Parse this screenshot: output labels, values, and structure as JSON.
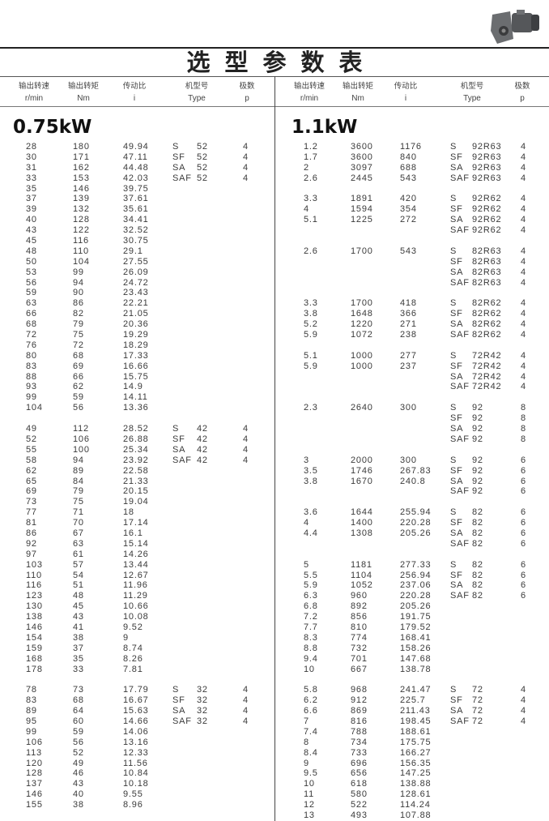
{
  "title": "选型参数表",
  "colors": {
    "text": "#3a3a3a",
    "rule": "#222222"
  },
  "headers": [
    {
      "cn": "输出转速",
      "en": "r/min"
    },
    {
      "cn": "输出转矩",
      "en": "Nm"
    },
    {
      "cn": "传动比",
      "en": "i"
    },
    {
      "cn": "机型号",
      "en": "Type"
    },
    {
      "cn": "极数",
      "en": "p"
    }
  ],
  "sections": [
    {
      "power": "0.75kW",
      "blocks": [
        {
          "rows": [
            [
              "28",
              "180",
              "49.94"
            ],
            [
              "30",
              "171",
              "47.11"
            ],
            [
              "31",
              "162",
              "44.48"
            ],
            [
              "33",
              "153",
              "42.03"
            ],
            [
              "35",
              "146",
              "39.75"
            ],
            [
              "37",
              "139",
              "37.61"
            ],
            [
              "39",
              "132",
              "35.61"
            ],
            [
              "40",
              "128",
              "34.41"
            ],
            [
              "43",
              "122",
              "32.52"
            ],
            [
              "45",
              "116",
              "30.75"
            ],
            [
              "48",
              "110",
              "29.1"
            ],
            [
              "50",
              "104",
              "27.55"
            ],
            [
              "53",
              "99",
              "26.09"
            ],
            [
              "56",
              "94",
              "24.72"
            ],
            [
              "59",
              "90",
              "23.43"
            ],
            [
              "63",
              "86",
              "22.21"
            ],
            [
              "66",
              "82",
              "21.05"
            ],
            [
              "68",
              "79",
              "20.36"
            ],
            [
              "72",
              "75",
              "19.29"
            ],
            [
              "76",
              "72",
              "18.29"
            ],
            [
              "80",
              "68",
              "17.33"
            ],
            [
              "83",
              "69",
              "16.66"
            ],
            [
              "88",
              "66",
              "15.75"
            ],
            [
              "93",
              "62",
              "14.9"
            ],
            [
              "99",
              "59",
              "14.11"
            ],
            [
              "104",
              "56",
              "13.36"
            ]
          ],
          "types": [
            [
              "S",
              "52",
              "4"
            ],
            [
              "SF",
              "52",
              "4"
            ],
            [
              "SA",
              "52",
              "4"
            ],
            [
              "SAF",
              "52",
              "4"
            ]
          ]
        },
        {
          "rows": [
            [
              "49",
              "112",
              "28.52"
            ],
            [
              "52",
              "106",
              "26.88"
            ],
            [
              "55",
              "100",
              "25.34"
            ],
            [
              "58",
              "94",
              "23.92"
            ],
            [
              "62",
              "89",
              "22.58"
            ],
            [
              "65",
              "84",
              "21.33"
            ],
            [
              "69",
              "79",
              "20.15"
            ],
            [
              "73",
              "75",
              "19.04"
            ],
            [
              "77",
              "71",
              "18"
            ],
            [
              "81",
              "70",
              "17.14"
            ],
            [
              "86",
              "67",
              "16.1"
            ],
            [
              "92",
              "63",
              "15.14"
            ],
            [
              "97",
              "61",
              "14.26"
            ],
            [
              "103",
              "57",
              "13.44"
            ],
            [
              "110",
              "54",
              "12.67"
            ],
            [
              "116",
              "51",
              "11.96"
            ],
            [
              "123",
              "48",
              "11.29"
            ],
            [
              "130",
              "45",
              "10.66"
            ],
            [
              "138",
              "43",
              "10.08"
            ],
            [
              "146",
              "41",
              "9.52"
            ],
            [
              "154",
              "38",
              "9"
            ],
            [
              "159",
              "37",
              "8.74"
            ],
            [
              "168",
              "35",
              "8.26"
            ],
            [
              "178",
              "33",
              "7.81"
            ]
          ],
          "types": [
            [
              "S",
              "42",
              "4"
            ],
            [
              "SF",
              "42",
              "4"
            ],
            [
              "SA",
              "42",
              "4"
            ],
            [
              "SAF",
              "42",
              "4"
            ]
          ]
        },
        {
          "rows": [
            [
              "78",
              "73",
              "17.79"
            ],
            [
              "83",
              "68",
              "16.67"
            ],
            [
              "89",
              "64",
              "15.63"
            ],
            [
              "95",
              "60",
              "14.66"
            ],
            [
              "99",
              "59",
              "14.06"
            ],
            [
              "106",
              "56",
              "13.16"
            ],
            [
              "113",
              "52",
              "12.33"
            ],
            [
              "120",
              "49",
              "11.56"
            ],
            [
              "128",
              "46",
              "10.84"
            ],
            [
              "137",
              "43",
              "10.18"
            ],
            [
              "146",
              "40",
              "9.55"
            ],
            [
              "155",
              "38",
              "8.96"
            ]
          ],
          "types": [
            [
              "S",
              "32",
              "4"
            ],
            [
              "SF",
              "32",
              "4"
            ],
            [
              "SA",
              "32",
              "4"
            ],
            [
              "SAF",
              "32",
              "4"
            ]
          ]
        }
      ]
    },
    {
      "power": "1.1kW",
      "blocks": [
        {
          "rows": [
            [
              "1.2",
              "3600",
              "1176"
            ],
            [
              "1.7",
              "3600",
              "840"
            ],
            [
              "2",
              "3097",
              "688"
            ],
            [
              "2.6",
              "2445",
              "543"
            ]
          ],
          "types": [
            [
              "S",
              "92R63",
              "4"
            ],
            [
              "SF",
              "92R63",
              "4"
            ],
            [
              "SA",
              "92R63",
              "4"
            ],
            [
              "SAF",
              "92R63",
              "4"
            ]
          ]
        },
        {
          "rows": [
            [
              "3.3",
              "1891",
              "420"
            ],
            [
              "4",
              "1594",
              "354"
            ],
            [
              "5.1",
              "1225",
              "272"
            ]
          ],
          "types": [
            [
              "S",
              "92R62",
              "4"
            ],
            [
              "SF",
              "92R62",
              "4"
            ],
            [
              "SA",
              "92R62",
              "4"
            ],
            [
              "SAF",
              "92R62",
              "4"
            ]
          ]
        },
        {
          "rows": [
            [
              "2.6",
              "1700",
              "543"
            ]
          ],
          "types": [
            [
              "S",
              "82R63",
              "4"
            ],
            [
              "SF",
              "82R63",
              "4"
            ],
            [
              "SA",
              "82R63",
              "4"
            ],
            [
              "SAF",
              "82R63",
              "4"
            ]
          ]
        },
        {
          "rows": [
            [
              "3.3",
              "1700",
              "418"
            ],
            [
              "3.8",
              "1648",
              "366"
            ],
            [
              "5.2",
              "1220",
              "271"
            ],
            [
              "5.9",
              "1072",
              "238"
            ]
          ],
          "types": [
            [
              "S",
              "82R62",
              "4"
            ],
            [
              "SF",
              "82R62",
              "4"
            ],
            [
              "SA",
              "82R62",
              "4"
            ],
            [
              "SAF",
              "82R62",
              "4"
            ]
          ]
        },
        {
          "rows": [
            [
              "5.1",
              "1000",
              "277"
            ],
            [
              "5.9",
              "1000",
              "237"
            ]
          ],
          "types": [
            [
              "S",
              "72R42",
              "4"
            ],
            [
              "SF",
              "72R42",
              "4"
            ],
            [
              "SA",
              "72R42",
              "4"
            ],
            [
              "SAF",
              "72R42",
              "4"
            ]
          ]
        },
        {
          "rows": [
            [
              "2.3",
              "2640",
              "300"
            ]
          ],
          "types": [
            [
              "S",
              "92",
              "8"
            ],
            [
              "SF",
              "92",
              "8"
            ],
            [
              "SA",
              "92",
              "8"
            ],
            [
              "SAF",
              "92",
              "8"
            ]
          ]
        },
        {
          "rows": [
            [
              "3",
              "2000",
              "300"
            ],
            [
              "3.5",
              "1746",
              "267.83"
            ],
            [
              "3.8",
              "1670",
              "240.8"
            ]
          ],
          "types": [
            [
              "S",
              "92",
              "6"
            ],
            [
              "SF",
              "92",
              "6"
            ],
            [
              "SA",
              "92",
              "6"
            ],
            [
              "SAF",
              "92",
              "6"
            ]
          ]
        },
        {
          "rows": [
            [
              "3.6",
              "1644",
              "255.94"
            ],
            [
              "4",
              "1400",
              "220.28"
            ],
            [
              "4.4",
              "1308",
              "205.26"
            ]
          ],
          "types": [
            [
              "S",
              "82",
              "6"
            ],
            [
              "SF",
              "82",
              "6"
            ],
            [
              "SA",
              "82",
              "6"
            ],
            [
              "SAF",
              "82",
              "6"
            ]
          ]
        },
        {
          "rows": [
            [
              "5",
              "1181",
              "277.33"
            ],
            [
              "5.5",
              "1104",
              "256.94"
            ],
            [
              "5.9",
              "1052",
              "237.06"
            ],
            [
              "6.3",
              "960",
              "220.28"
            ],
            [
              "6.8",
              "892",
              "205.26"
            ],
            [
              "7.2",
              "856",
              "191.75"
            ],
            [
              "7.7",
              "810",
              "179.52"
            ],
            [
              "8.3",
              "774",
              "168.41"
            ],
            [
              "8.8",
              "732",
              "158.26"
            ],
            [
              "9.4",
              "701",
              "147.68"
            ],
            [
              "10",
              "667",
              "138.78"
            ]
          ],
          "types": [
            [
              "S",
              "82",
              "6"
            ],
            [
              "SF",
              "82",
              "6"
            ],
            [
              "SA",
              "82",
              "6"
            ],
            [
              "SAF",
              "82",
              "6"
            ]
          ]
        },
        {
          "rows": [
            [
              "5.8",
              "968",
              "241.47"
            ],
            [
              "6.2",
              "912",
              "225.7"
            ],
            [
              "6.6",
              "869",
              "211.43"
            ],
            [
              "7",
              "816",
              "198.45"
            ],
            [
              "7.4",
              "788",
              "188.61"
            ],
            [
              "8",
              "734",
              "175.75"
            ],
            [
              "8.4",
              "733",
              "166.27"
            ],
            [
              "9",
              "696",
              "156.35"
            ],
            [
              "9.5",
              "656",
              "147.25"
            ],
            [
              "10",
              "618",
              "138.88"
            ],
            [
              "11",
              "580",
              "128.61"
            ],
            [
              "12",
              "522",
              "114.24"
            ],
            [
              "13",
              "493",
              "107.88"
            ]
          ],
          "types": [
            [
              "S",
              "72",
              "4"
            ],
            [
              "SF",
              "72",
              "4"
            ],
            [
              "SA",
              "72",
              "4"
            ],
            [
              "SAF",
              "72",
              "4"
            ]
          ]
        }
      ]
    }
  ]
}
